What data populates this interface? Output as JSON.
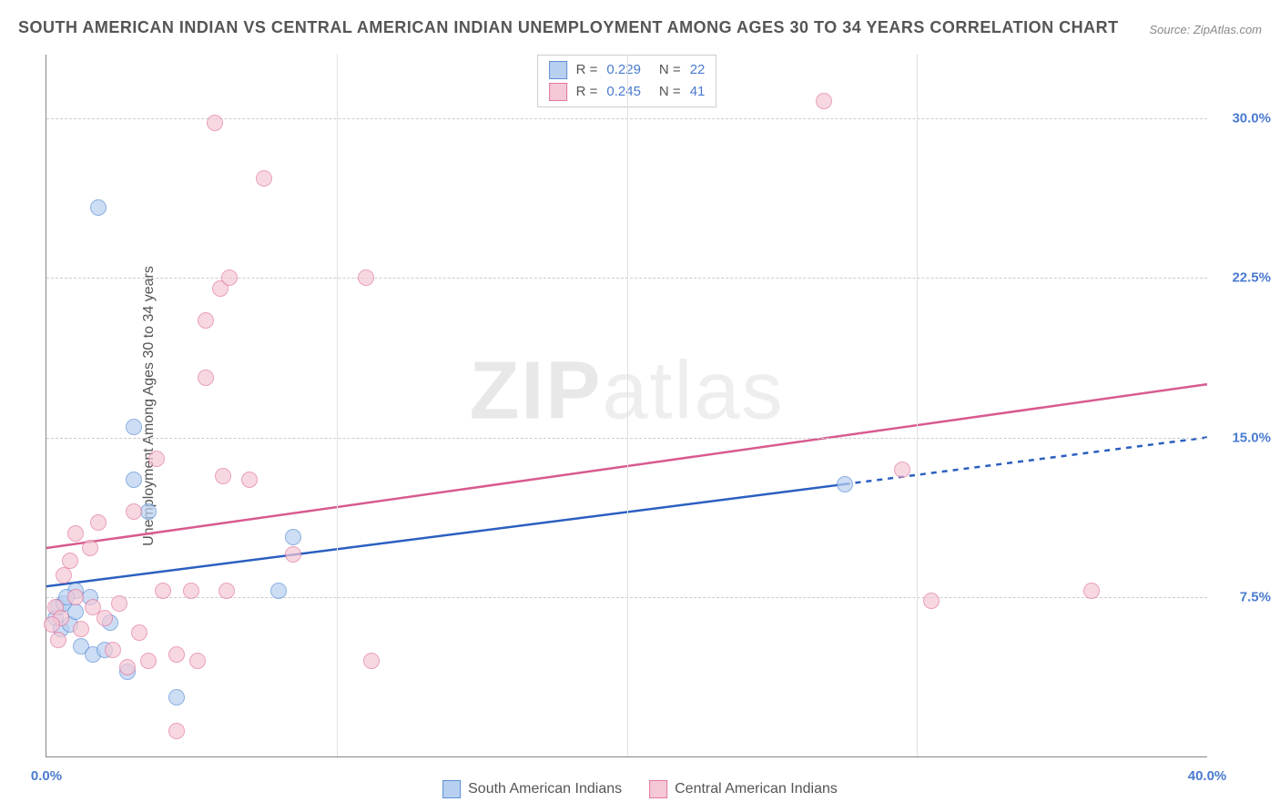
{
  "title": "SOUTH AMERICAN INDIAN VS CENTRAL AMERICAN INDIAN UNEMPLOYMENT AMONG AGES 30 TO 34 YEARS CORRELATION CHART",
  "source": "Source: ZipAtlas.com",
  "ylabel": "Unemployment Among Ages 30 to 34 years",
  "watermark_bold": "ZIP",
  "watermark_thin": "atlas",
  "chart": {
    "type": "scatter",
    "xlim": [
      0,
      40
    ],
    "ylim": [
      0,
      33
    ],
    "xticks": [
      {
        "v": 0,
        "label": "0.0%",
        "color": "#4a7bd0"
      },
      {
        "v": 40,
        "label": "40.0%",
        "color": "#4a7bd0"
      }
    ],
    "yticks": [
      {
        "v": 7.5,
        "label": "7.5%",
        "color": "#4a7bd0"
      },
      {
        "v": 15.0,
        "label": "15.0%",
        "color": "#4a7bd0"
      },
      {
        "v": 22.5,
        "label": "22.5%",
        "color": "#4a7bd0"
      },
      {
        "v": 30.0,
        "label": "30.0%",
        "color": "#4a7bd0"
      }
    ],
    "vgrid": [
      10,
      20,
      30
    ],
    "grid_color": "#cccccc",
    "background_color": "#ffffff",
    "series": [
      {
        "name": "South American Indians",
        "color_fill": "#b8d0f0",
        "color_stroke": "#5b8fd6",
        "r_value": "0.229",
        "n_value": "22",
        "trend": {
          "x1": 0,
          "y1": 8.0,
          "x2": 27.5,
          "y2": 12.8,
          "dash_to_x": 40,
          "dash_to_y": 15.0,
          "color": "#2b5fc0",
          "width": 2.5
        },
        "points": [
          {
            "x": 0.3,
            "y": 6.5
          },
          {
            "x": 0.4,
            "y": 7.0
          },
          {
            "x": 0.5,
            "y": 6.0
          },
          {
            "x": 0.6,
            "y": 7.2
          },
          {
            "x": 0.8,
            "y": 6.2
          },
          {
            "x": 1.0,
            "y": 6.8
          },
          {
            "x": 1.2,
            "y": 5.2
          },
          {
            "x": 1.5,
            "y": 7.5
          },
          {
            "x": 1.6,
            "y": 4.8
          },
          {
            "x": 2.0,
            "y": 5.0
          },
          {
            "x": 2.2,
            "y": 6.3
          },
          {
            "x": 2.8,
            "y": 4.0
          },
          {
            "x": 3.0,
            "y": 13.0
          },
          {
            "x": 4.5,
            "y": 2.8
          },
          {
            "x": 1.8,
            "y": 25.8
          },
          {
            "x": 3.0,
            "y": 15.5
          },
          {
            "x": 3.5,
            "y": 11.5
          },
          {
            "x": 8.0,
            "y": 7.8
          },
          {
            "x": 8.5,
            "y": 10.3
          },
          {
            "x": 27.5,
            "y": 12.8
          },
          {
            "x": 1.0,
            "y": 7.8
          },
          {
            "x": 0.7,
            "y": 7.5
          }
        ]
      },
      {
        "name": "Central American Indians",
        "color_fill": "#f5c8d5",
        "color_stroke": "#e278a0",
        "r_value": "0.245",
        "n_value": "41",
        "trend": {
          "x1": 0,
          "y1": 9.8,
          "x2": 40,
          "y2": 17.5,
          "color": "#d85a8f",
          "width": 2.5
        },
        "points": [
          {
            "x": 0.3,
            "y": 7.0
          },
          {
            "x": 0.5,
            "y": 6.5
          },
          {
            "x": 0.6,
            "y": 8.5
          },
          {
            "x": 0.8,
            "y": 9.2
          },
          {
            "x": 1.0,
            "y": 7.5
          },
          {
            "x": 1.2,
            "y": 6.0
          },
          {
            "x": 1.5,
            "y": 9.8
          },
          {
            "x": 1.6,
            "y": 7.0
          },
          {
            "x": 1.8,
            "y": 11.0
          },
          {
            "x": 2.0,
            "y": 6.5
          },
          {
            "x": 2.3,
            "y": 5.0
          },
          {
            "x": 2.5,
            "y": 7.2
          },
          {
            "x": 2.8,
            "y": 4.2
          },
          {
            "x": 3.0,
            "y": 11.5
          },
          {
            "x": 3.2,
            "y": 5.8
          },
          {
            "x": 3.5,
            "y": 4.5
          },
          {
            "x": 3.8,
            "y": 14.0
          },
          {
            "x": 4.0,
            "y": 7.8
          },
          {
            "x": 4.5,
            "y": 4.8
          },
          {
            "x": 4.5,
            "y": 1.2
          },
          {
            "x": 5.5,
            "y": 20.5
          },
          {
            "x": 5.8,
            "y": 29.8
          },
          {
            "x": 5.0,
            "y": 7.8
          },
          {
            "x": 5.2,
            "y": 4.5
          },
          {
            "x": 5.5,
            "y": 17.8
          },
          {
            "x": 6.0,
            "y": 22.0
          },
          {
            "x": 6.3,
            "y": 22.5
          },
          {
            "x": 6.1,
            "y": 13.2
          },
          {
            "x": 6.2,
            "y": 7.8
          },
          {
            "x": 7.0,
            "y": 13.0
          },
          {
            "x": 7.5,
            "y": 27.2
          },
          {
            "x": 8.5,
            "y": 9.5
          },
          {
            "x": 11.0,
            "y": 22.5
          },
          {
            "x": 11.2,
            "y": 4.5
          },
          {
            "x": 26.8,
            "y": 30.8
          },
          {
            "x": 29.5,
            "y": 13.5
          },
          {
            "x": 30.5,
            "y": 7.3
          },
          {
            "x": 36.0,
            "y": 7.8
          },
          {
            "x": 1.0,
            "y": 10.5
          },
          {
            "x": 0.4,
            "y": 5.5
          },
          {
            "x": 0.2,
            "y": 6.2
          }
        ]
      }
    ]
  },
  "legend_box": {
    "rows": [
      {
        "swatch_fill": "#b8d0f0",
        "swatch_stroke": "#5b8fd6",
        "r_label": "R =",
        "r_val": "0.229",
        "n_label": "N =",
        "n_val": "22"
      },
      {
        "swatch_fill": "#f5c8d5",
        "swatch_stroke": "#e278a0",
        "r_label": "R =",
        "r_val": "0.245",
        "n_label": "N =",
        "n_val": "41"
      }
    ],
    "r_color": "#555555",
    "val_color": "#4a7bd0"
  },
  "bottom_legend": [
    {
      "swatch_fill": "#b8d0f0",
      "swatch_stroke": "#5b8fd6",
      "label": "South American Indians"
    },
    {
      "swatch_fill": "#f5c8d5",
      "swatch_stroke": "#e278a0",
      "label": "Central American Indians"
    }
  ]
}
